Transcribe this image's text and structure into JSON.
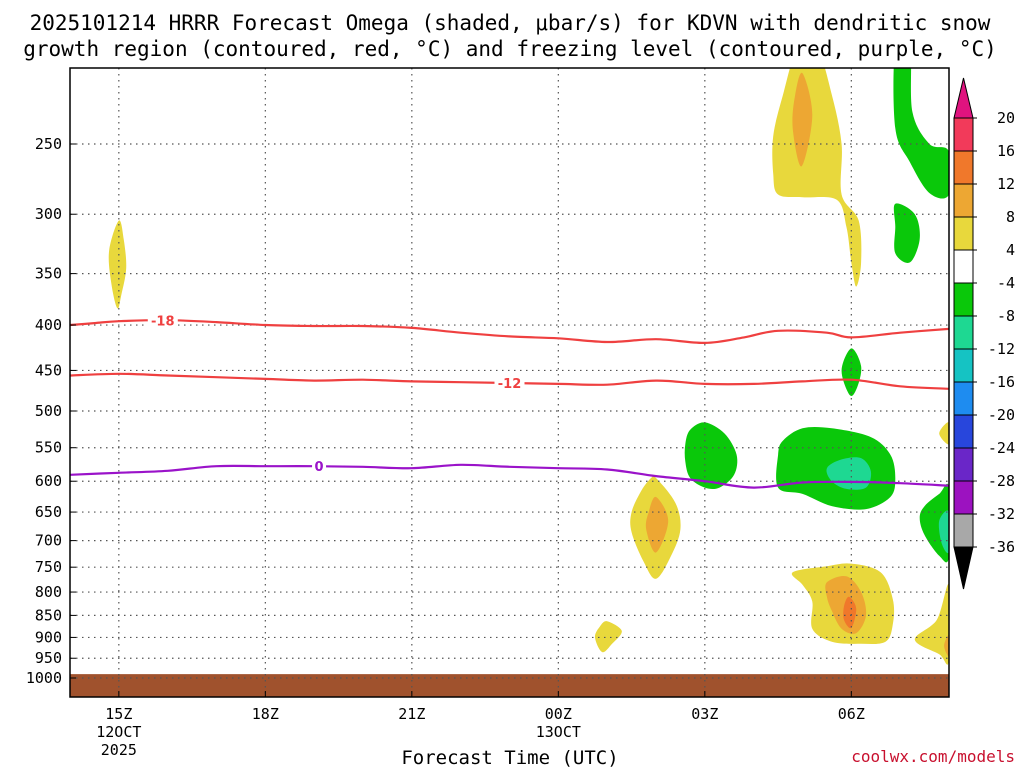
{
  "chart_data": {
    "type": "contour",
    "title": [
      "2025101214 HRRR Forecast Omega (shaded, μbar/s) for KDVN with dendritic snow",
      "growth region (contoured, red, °C) and freezing level (contoured, purple, °C)"
    ],
    "xlabel": "Forecast Time (UTC)",
    "credit": "coolwx.com/models",
    "x_range_hours": [
      14.0,
      32.0
    ],
    "x_ticks": [
      {
        "h": 15,
        "lines": [
          "15Z",
          "12OCT",
          "2025"
        ]
      },
      {
        "h": 18,
        "lines": [
          "18Z"
        ]
      },
      {
        "h": 21,
        "lines": [
          "21Z"
        ]
      },
      {
        "h": 24,
        "lines": [
          "00Z",
          "13OCT"
        ]
      },
      {
        "h": 27,
        "lines": [
          "03Z"
        ]
      },
      {
        "h": 30,
        "lines": [
          "06Z"
        ]
      }
    ],
    "y_ticks": [
      250,
      300,
      350,
      400,
      450,
      500,
      550,
      600,
      650,
      700,
      750,
      800,
      850,
      900,
      950,
      1000
    ],
    "y_range_hpa": [
      200,
      1010
    ],
    "ground": {
      "pressure_top": 990,
      "color": "#a0522d"
    },
    "colorbar": {
      "labels": [
        "20",
        "16",
        "12",
        "8",
        "4",
        "-4",
        "-8",
        "-12",
        "-16",
        "-20",
        "-24",
        "-28",
        "-32",
        "-36"
      ],
      "colors": [
        "#f23a5a",
        "#f0782b",
        "#eda733",
        "#e8d83c",
        "#ffffff",
        "#0ac80a",
        "#1ed892",
        "#15c3c3",
        "#1e8cf0",
        "#2846dc",
        "#6a26c8",
        "#9c12c0",
        "#a8a8a8"
      ],
      "top_arrow": "#e0137f",
      "bottom_arrow": "#000000"
    },
    "lines": [
      {
        "name": "-18 C isotherm",
        "label": "-18",
        "color": "#ef4040",
        "label_at_h": 15.9,
        "points": [
          [
            14.0,
            400
          ],
          [
            14.5,
            398
          ],
          [
            15.0,
            396
          ],
          [
            16.0,
            395
          ],
          [
            17.0,
            397
          ],
          [
            18.0,
            400
          ],
          [
            19.0,
            401
          ],
          [
            20.0,
            401
          ],
          [
            21.0,
            403
          ],
          [
            22.0,
            408
          ],
          [
            23.0,
            412
          ],
          [
            24.0,
            414
          ],
          [
            25.0,
            418
          ],
          [
            26.0,
            415
          ],
          [
            27.0,
            419
          ],
          [
            27.8,
            413
          ],
          [
            28.5,
            406
          ],
          [
            29.5,
            408
          ],
          [
            30.0,
            413
          ],
          [
            31.0,
            408
          ],
          [
            32.0,
            404
          ]
        ]
      },
      {
        "name": "-12 C isotherm",
        "label": "-12",
        "color": "#ef4040",
        "label_at_h": 23.0,
        "points": [
          [
            14.0,
            456
          ],
          [
            15.0,
            454
          ],
          [
            16.0,
            456
          ],
          [
            17.0,
            458
          ],
          [
            18.0,
            460
          ],
          [
            19.0,
            462
          ],
          [
            20.0,
            461
          ],
          [
            21.0,
            463
          ],
          [
            22.0,
            464
          ],
          [
            23.0,
            465
          ],
          [
            24.0,
            466
          ],
          [
            25.0,
            467
          ],
          [
            26.0,
            462
          ],
          [
            27.0,
            466
          ],
          [
            28.0,
            466
          ],
          [
            29.0,
            463
          ],
          [
            30.0,
            461
          ],
          [
            31.0,
            469
          ],
          [
            32.0,
            472
          ]
        ]
      },
      {
        "name": "0 C freezing level",
        "label": "0",
        "color": "#9a13c9",
        "label_at_h": 19.1,
        "points": [
          [
            14.0,
            590
          ],
          [
            15.0,
            587
          ],
          [
            16.0,
            584
          ],
          [
            17.0,
            577
          ],
          [
            18.0,
            577
          ],
          [
            19.0,
            577
          ],
          [
            20.0,
            578
          ],
          [
            21.0,
            580
          ],
          [
            22.0,
            575
          ],
          [
            23.0,
            578
          ],
          [
            24.0,
            580
          ],
          [
            25.0,
            582
          ],
          [
            26.0,
            592
          ],
          [
            27.0,
            600
          ],
          [
            28.0,
            610
          ],
          [
            29.0,
            602
          ],
          [
            30.0,
            601
          ],
          [
            31.0,
            603
          ],
          [
            32.0,
            607
          ]
        ]
      }
    ],
    "shaded_regions": [
      {
        "name": "omega 4-8 near 15Z",
        "color": "#e8d83c",
        "points": [
          [
            15.0,
            305
          ],
          [
            15.1,
            320
          ],
          [
            15.15,
            345
          ],
          [
            15.05,
            370
          ],
          [
            14.97,
            383
          ],
          [
            14.85,
            360
          ],
          [
            14.8,
            330
          ]
        ]
      },
      {
        "name": "omega 4-8 upper 05Z",
        "color": "#e8d83c",
        "points": [
          [
            29.3,
            195
          ],
          [
            28.9,
            195
          ],
          [
            28.6,
            220
          ],
          [
            28.4,
            245
          ],
          [
            28.4,
            270
          ],
          [
            28.5,
            285
          ],
          [
            29.0,
            287
          ],
          [
            29.7,
            289
          ],
          [
            29.9,
            310
          ],
          [
            30.0,
            340
          ],
          [
            30.1,
            362
          ],
          [
            30.2,
            340
          ],
          [
            30.15,
            305
          ],
          [
            29.8,
            285
          ],
          [
            29.8,
            250
          ],
          [
            29.6,
            220
          ]
        ]
      },
      {
        "name": "omega 8-12 upper 05Z",
        "color": "#eda733",
        "points": [
          [
            29.0,
            208
          ],
          [
            29.2,
            232
          ],
          [
            28.98,
            265
          ],
          [
            28.8,
            240
          ],
          [
            28.85,
            220
          ]
        ]
      },
      {
        "name": "omega -4 to -8 upper right",
        "color": "#0ac80a",
        "points": [
          [
            30.9,
            195
          ],
          [
            31.2,
            195
          ],
          [
            31.25,
            230
          ],
          [
            31.6,
            250
          ],
          [
            32.0,
            255
          ],
          [
            32.0,
            285
          ],
          [
            31.6,
            284
          ],
          [
            31.2,
            262
          ],
          [
            30.9,
            240
          ]
        ]
      },
      {
        "name": "omega -4 to -8 near 300",
        "color": "#0ac80a",
        "points": [
          [
            30.9,
            292
          ],
          [
            31.3,
            300
          ],
          [
            31.4,
            320
          ],
          [
            31.2,
            340
          ],
          [
            30.9,
            332
          ],
          [
            30.9,
            310
          ]
        ]
      },
      {
        "name": "omega -4 to -8 near 450",
        "color": "#0ac80a",
        "points": [
          [
            30.0,
            425
          ],
          [
            30.2,
            445
          ],
          [
            30.12,
            470
          ],
          [
            29.97,
            480
          ],
          [
            29.8,
            450
          ]
        ]
      },
      {
        "name": "omega 4-8 edge 500",
        "color": "#e8d83c",
        "points": [
          [
            32.0,
            515
          ],
          [
            31.8,
            530
          ],
          [
            32.0,
            545
          ]
        ]
      },
      {
        "name": "omega -4 to -8 near 03Z",
        "color": "#0ac80a",
        "points": [
          [
            26.7,
            525
          ],
          [
            27.0,
            515
          ],
          [
            27.4,
            530
          ],
          [
            27.65,
            560
          ],
          [
            27.6,
            590
          ],
          [
            27.3,
            610
          ],
          [
            27.0,
            610
          ],
          [
            26.7,
            595
          ],
          [
            26.6,
            570
          ],
          [
            26.6,
            545
          ]
        ]
      },
      {
        "name": "omega -4 to -8 near 06Z",
        "color": "#0ac80a",
        "points": [
          [
            28.5,
            560
          ],
          [
            28.6,
            540
          ],
          [
            29.0,
            523
          ],
          [
            29.6,
            523
          ],
          [
            30.4,
            535
          ],
          [
            30.8,
            560
          ],
          [
            30.9,
            595
          ],
          [
            30.8,
            625
          ],
          [
            30.3,
            645
          ],
          [
            29.6,
            640
          ],
          [
            29.0,
            620
          ],
          [
            28.5,
            610
          ]
        ]
      },
      {
        "name": "omega -8 to -12 near 06Z",
        "color": "#1ed892",
        "points": [
          [
            29.5,
            580
          ],
          [
            29.8,
            567
          ],
          [
            30.2,
            565
          ],
          [
            30.4,
            585
          ],
          [
            30.3,
            610
          ],
          [
            29.9,
            612
          ],
          [
            29.6,
            600
          ]
        ]
      },
      {
        "name": "omega -4 to -8 near 08Z",
        "color": "#0ac80a",
        "points": [
          [
            31.5,
            640
          ],
          [
            31.8,
            620
          ],
          [
            32.0,
            610
          ],
          [
            32.0,
            730
          ],
          [
            31.8,
            728
          ],
          [
            31.5,
            690
          ],
          [
            31.4,
            660
          ]
        ]
      },
      {
        "name": "omega -8 to -12 near 08Z",
        "color": "#1ed892",
        "points": [
          [
            31.8,
            665
          ],
          [
            32.0,
            650
          ],
          [
            32.0,
            720
          ],
          [
            31.85,
            705
          ]
        ]
      },
      {
        "name": "omega 4-8 near 02Z",
        "color": "#e8d83c",
        "points": [
          [
            26.0,
            595
          ],
          [
            26.4,
            635
          ],
          [
            26.5,
            680
          ],
          [
            26.3,
            730
          ],
          [
            26.0,
            773
          ],
          [
            25.75,
            740
          ],
          [
            25.5,
            685
          ],
          [
            25.5,
            650
          ],
          [
            25.7,
            615
          ],
          [
            25.9,
            595
          ]
        ]
      },
      {
        "name": "omega 8-12 near 02Z",
        "color": "#eda733",
        "points": [
          [
            26.0,
            625
          ],
          [
            26.25,
            665
          ],
          [
            26.0,
            722
          ],
          [
            25.8,
            680
          ],
          [
            25.85,
            650
          ]
        ]
      },
      {
        "name": "omega 4-8 near 01Z",
        "color": "#e8d83c",
        "points": [
          [
            25.0,
            863
          ],
          [
            25.3,
            885
          ],
          [
            25.1,
            915
          ],
          [
            24.9,
            935
          ],
          [
            24.75,
            900
          ],
          [
            24.85,
            875
          ]
        ]
      },
      {
        "name": "omega 4-8 near 06Z low",
        "color": "#e8d83c",
        "points": [
          [
            29.5,
            748
          ],
          [
            30.0,
            743
          ],
          [
            30.6,
            760
          ],
          [
            30.85,
            815
          ],
          [
            30.85,
            870
          ],
          [
            30.7,
            910
          ],
          [
            30.2,
            915
          ],
          [
            29.6,
            910
          ],
          [
            29.2,
            880
          ],
          [
            29.2,
            820
          ],
          [
            29.0,
            785
          ],
          [
            28.8,
            760
          ]
        ]
      },
      {
        "name": "omega 8-12 near 06Z low",
        "color": "#eda733",
        "points": [
          [
            29.5,
            780
          ],
          [
            29.9,
            768
          ],
          [
            30.2,
            800
          ],
          [
            30.3,
            850
          ],
          [
            30.1,
            890
          ],
          [
            29.8,
            880
          ],
          [
            29.6,
            840
          ],
          [
            29.5,
            810
          ]
        ]
      },
      {
        "name": "omega 12-16 near 06Z low",
        "color": "#f0782b",
        "points": [
          [
            29.95,
            810
          ],
          [
            30.1,
            835
          ],
          [
            30.0,
            878
          ],
          [
            29.85,
            860
          ],
          [
            29.85,
            830
          ]
        ]
      },
      {
        "name": "omega 4-8 lower right",
        "color": "#e8d83c",
        "points": [
          [
            32.0,
            785
          ],
          [
            31.75,
            860
          ],
          [
            31.3,
            905
          ],
          [
            31.8,
            940
          ],
          [
            32.0,
            955
          ]
        ]
      },
      {
        "name": "omega 8-12 lower right",
        "color": "#eda733",
        "points": [
          [
            32.0,
            895
          ],
          [
            31.9,
            920
          ],
          [
            32.0,
            945
          ]
        ]
      }
    ]
  }
}
